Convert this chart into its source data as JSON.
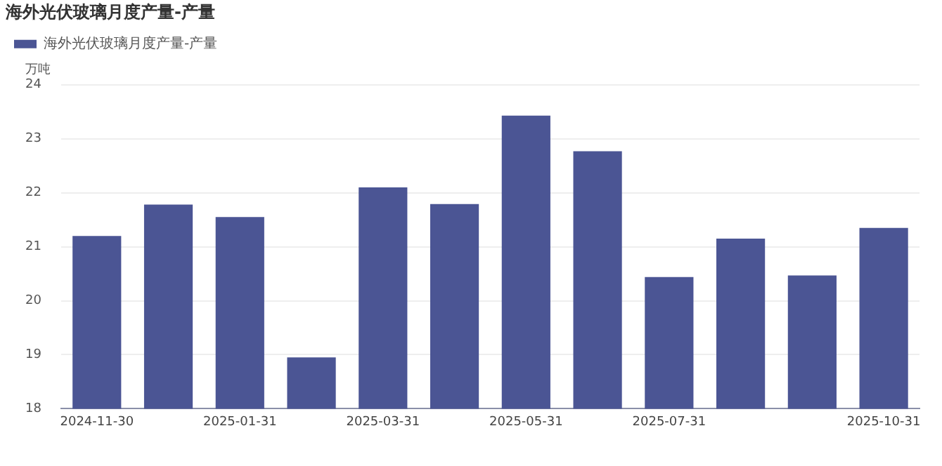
{
  "chart_data": {
    "type": "bar",
    "title": "海外光伏玻璃月度产量-产量",
    "ylabel": "万吨",
    "categories": [
      "2024-11-30",
      null,
      "2025-01-31",
      null,
      "2025-03-31",
      null,
      "2025-05-31",
      null,
      "2025-07-31",
      null,
      null,
      "2025-10-31"
    ],
    "series": [
      {
        "name": "海外光伏玻璃月度产量-产量",
        "color": "#4b5594",
        "values": [
          21.2,
          21.78,
          21.55,
          18.95,
          22.1,
          21.79,
          23.43,
          22.77,
          20.44,
          21.15,
          20.47,
          21.35
        ]
      }
    ],
    "ylim": [
      18,
      24
    ],
    "yticks": [
      18,
      19,
      20,
      21,
      22,
      23,
      24
    ],
    "grid": "y",
    "legend": "top left"
  }
}
